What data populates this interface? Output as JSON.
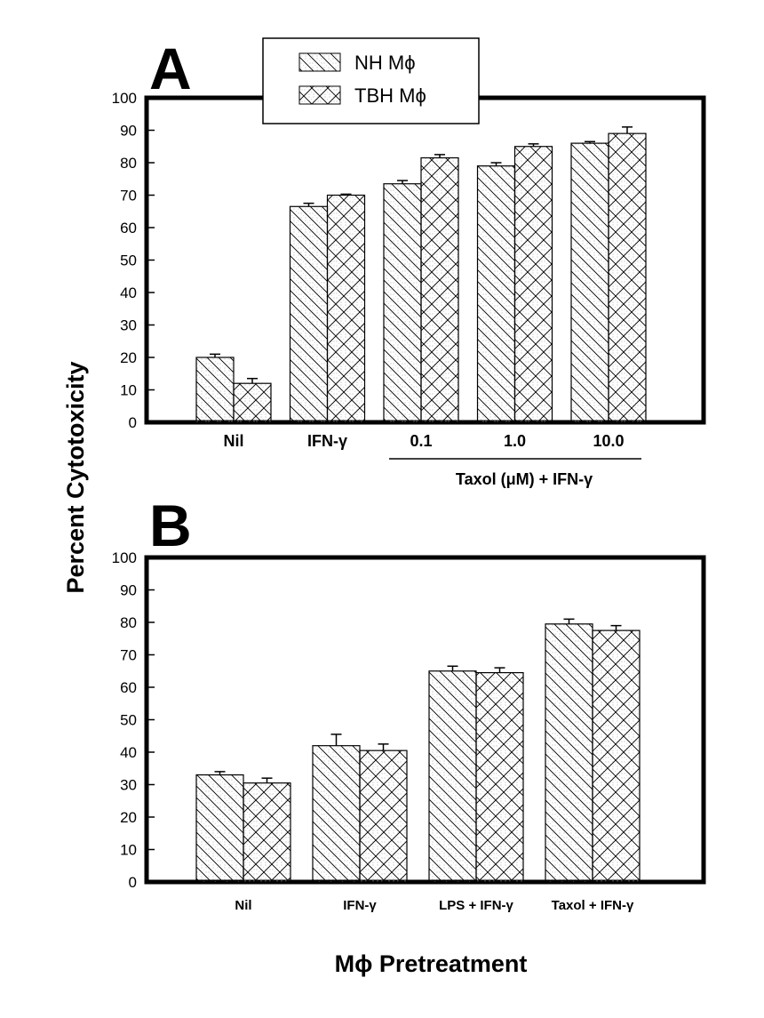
{
  "figure": {
    "ylabel": "Percent Cytotoxicity",
    "xlabel": "Mϕ Pretreatment",
    "legend": [
      {
        "label": "NH Mϕ",
        "pattern": "diagonal-hatch"
      },
      {
        "label": "TBH Mϕ",
        "pattern": "cross-hatch"
      }
    ],
    "colors": {
      "ink": "#000000",
      "fill": "#ffffff",
      "stipple": "#b8b8b8"
    }
  },
  "chart_data": [
    {
      "type": "bar",
      "panel": "A",
      "categories": [
        "Nil",
        "IFN-γ",
        "0.1",
        "1.0",
        "10.0"
      ],
      "group_label": "Taxol (μM) + IFN-γ",
      "series": [
        {
          "name": "NH Mϕ",
          "values": [
            20,
            66.5,
            73.5,
            79,
            86
          ],
          "errors": [
            1,
            1,
            1,
            1,
            0.5
          ]
        },
        {
          "name": "TBH Mϕ",
          "values": [
            12,
            70,
            81.5,
            85,
            89
          ],
          "errors": [
            1.5,
            0.3,
            1,
            0.8,
            2
          ]
        }
      ],
      "ylim": [
        0,
        100
      ],
      "yticks": [
        0,
        10,
        20,
        30,
        40,
        50,
        60,
        70,
        80,
        90,
        100
      ],
      "grid": false
    },
    {
      "type": "bar",
      "panel": "B",
      "categories": [
        "Nil",
        "IFN-γ",
        "LPS + IFN-γ",
        "Taxol + IFN-γ"
      ],
      "series": [
        {
          "name": "NH Mϕ",
          "values": [
            33,
            42,
            65,
            79.5
          ],
          "errors": [
            1,
            3.5,
            1.5,
            1.5
          ]
        },
        {
          "name": "TBH Mϕ",
          "values": [
            30.5,
            40.5,
            64.5,
            77.5
          ],
          "errors": [
            1.5,
            2,
            1.5,
            1.5
          ]
        }
      ],
      "ylim": [
        0,
        100
      ],
      "yticks": [
        0,
        10,
        20,
        30,
        40,
        50,
        60,
        70,
        80,
        90,
        100
      ],
      "grid": false
    }
  ]
}
